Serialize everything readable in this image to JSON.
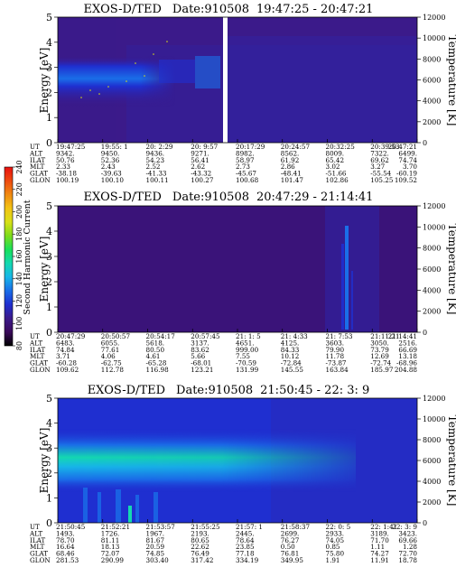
{
  "colorbar": {
    "label": "Second Harmonic Current",
    "ticks": [
      "80",
      "100",
      "120",
      "140",
      "160",
      "180",
      "200",
      "220",
      "240"
    ],
    "colors": [
      "#000000",
      "#3a0a5a",
      "#3b1a8a",
      "#1f2fd0",
      "#1a6ee8",
      "#17b6e8",
      "#14d9b0",
      "#18e05a",
      "#7ddc1a",
      "#d8e018",
      "#f2c414",
      "#f08a12",
      "#ee4a10",
      "#e81010"
    ]
  },
  "chart_data": [
    {
      "type": "heatmap",
      "title": "EXOS-D/TED",
      "date_label": "Date:910508",
      "time_range": "19:47:25 - 20:47:21",
      "ylabel": "Energy [eV]",
      "ylabel_right": "Temperature [K]",
      "ylim": [
        0,
        5
      ],
      "ylim_right": [
        0,
        12000
      ],
      "yticks": [
        "0",
        "1",
        "2",
        "3",
        "4",
        "5"
      ],
      "yticks_right": [
        "0",
        "2000",
        "4000",
        "6000",
        "8000",
        "10000",
        "12000"
      ],
      "table_rows": [
        {
          "label": "UT",
          "values": [
            "19:47:25",
            "19:55: 1",
            "20: 2:29",
            "20: 9:57",
            "20:17:29",
            "20:24:57",
            "20:32:25",
            "20:39:53",
            "20:47:21"
          ]
        },
        {
          "label": "ALT",
          "values": [
            "9342.",
            "9450.",
            "9436.",
            "9271.",
            "8982.",
            "8562.",
            "8009.",
            "7322.",
            "6499."
          ]
        },
        {
          "label": "ILAT",
          "values": [
            "50.76",
            "52.36",
            "54.23",
            "56.41",
            "58.97",
            "61.92",
            "65.42",
            "69.62",
            "74.74"
          ]
        },
        {
          "label": "MLT",
          "values": [
            "2.33",
            "2.43",
            "2.52",
            "2.62",
            "2.73",
            "2.86",
            "3.02",
            "3.27",
            "3.70"
          ]
        },
        {
          "label": "GLAT",
          "values": [
            "-38.18",
            "-39.63",
            "-41.33",
            "-43.32",
            "-45.67",
            "-48.41",
            "-51.66",
            "-55.54",
            "-60.19"
          ]
        },
        {
          "label": "GLON",
          "values": [
            "100.19",
            "100.10",
            "100.11",
            "100.27",
            "100.68",
            "101.47",
            "102.86",
            "105.25",
            "109.52"
          ]
        }
      ]
    },
    {
      "type": "heatmap",
      "title": "EXOS-D/TED",
      "date_label": "Date:910508",
      "time_range": "20:47:29 - 21:14:41",
      "ylabel": "Energy [eV]",
      "ylabel_right": "Temperature [K]",
      "ylim": [
        0,
        5
      ],
      "ylim_right": [
        0,
        12000
      ],
      "yticks": [
        "0",
        "1",
        "2",
        "3",
        "4",
        "5"
      ],
      "yticks_right": [
        "0",
        "2000",
        "4000",
        "6000",
        "8000",
        "10000",
        "12000"
      ],
      "table_rows": [
        {
          "label": "UT",
          "values": [
            "20:47:29",
            "20:50:57",
            "20:54:17",
            "20:57:45",
            "21: 1: 5",
            "21: 4:33",
            "21: 7:53",
            "21:11:21",
            "21:14:41"
          ]
        },
        {
          "label": "ALT",
          "values": [
            "6483.",
            "6055.",
            "5618.",
            "3137.",
            "4651.",
            "4125.",
            "3603.",
            "3050.",
            "2516."
          ]
        },
        {
          "label": "ILAT",
          "values": [
            "74.84",
            "77.61",
            "80.50",
            "83.62",
            "999.00",
            "84.33",
            "79.90",
            "73.79",
            "66.69"
          ]
        },
        {
          "label": "MLT",
          "values": [
            "3.71",
            "4.06",
            "4.61",
            "5.66",
            "7.55",
            "10.12",
            "11.78",
            "12.69",
            "13.18"
          ]
        },
        {
          "label": "GLAT",
          "values": [
            "-60.28",
            "-62.75",
            "-65.28",
            "-68.01",
            "-70.59",
            "-72.84",
            "-73.87",
            "-72.74",
            "-68.96"
          ]
        },
        {
          "label": "GLON",
          "values": [
            "109.62",
            "112.78",
            "116.98",
            "123.21",
            "131.99",
            "145.55",
            "163.84",
            "185.97",
            "204.88"
          ]
        }
      ]
    },
    {
      "type": "heatmap",
      "title": "EXOS-D/TED",
      "date_label": "Date:910508",
      "time_range": "21:50:45 - 22: 3: 9",
      "ylabel": "Energy [eV]",
      "ylabel_right": "Temperature [K]",
      "ylim": [
        0,
        5
      ],
      "ylim_right": [
        0,
        12000
      ],
      "yticks": [
        "0",
        "1",
        "2",
        "3",
        "4",
        "5"
      ],
      "yticks_right": [
        "0",
        "2000",
        "4000",
        "6000",
        "8000",
        "10000",
        "12000"
      ],
      "table_rows": [
        {
          "label": "UT",
          "values": [
            "21:50:45",
            "21:52:21",
            "21:53:57",
            "21:55:25",
            "21:57: 1",
            "21:58:37",
            "22: 0: 5",
            "22: 1:41",
            "22: 3: 9"
          ]
        },
        {
          "label": "ALT",
          "values": [
            "1493.",
            "1726.",
            "1967.",
            "2193.",
            "2445.",
            "2699.",
            "2933.",
            "3189.",
            "3423."
          ]
        },
        {
          "label": "ILAT",
          "values": [
            "78.70",
            "81.11",
            "81.67",
            "80.65",
            "78.64",
            "76.27",
            "74.05",
            "71.70",
            "69.66"
          ]
        },
        {
          "label": "MLT",
          "values": [
            "16.64",
            "18.13",
            "20.59",
            "22.62",
            "23.85",
            "0.50",
            "0.85",
            "1.11",
            "1.28"
          ]
        },
        {
          "label": "GLAT",
          "values": [
            "68.46",
            "72.07",
            "74.85",
            "76.49",
            "77.18",
            "76.81",
            "75.80",
            "74.27",
            "72.70"
          ]
        },
        {
          "label": "GLON",
          "values": [
            "281.53",
            "290.99",
            "303.40",
            "317.42",
            "334.19",
            "349.95",
            "1.91",
            "11.91",
            "18.78"
          ]
        }
      ]
    }
  ]
}
